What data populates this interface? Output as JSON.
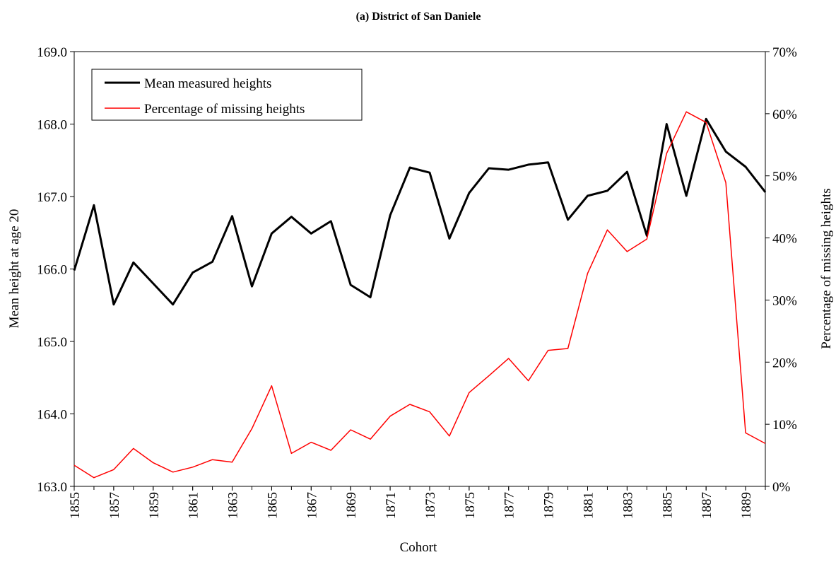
{
  "chart_data": {
    "type": "line",
    "title": "(a) District of San Daniele",
    "xlabel": "Cohort",
    "ylabel": "Mean height at age 20",
    "y2label": "Percentage of missing heights",
    "x": [
      1855,
      1856,
      1857,
      1858,
      1859,
      1860,
      1861,
      1862,
      1863,
      1864,
      1865,
      1866,
      1867,
      1868,
      1869,
      1870,
      1871,
      1872,
      1873,
      1874,
      1875,
      1876,
      1877,
      1878,
      1879,
      1880,
      1881,
      1882,
      1883,
      1884,
      1885,
      1886,
      1887,
      1888,
      1889,
      1890
    ],
    "xlim": [
      1855,
      1890
    ],
    "xticks": [
      1855,
      1857,
      1859,
      1861,
      1863,
      1865,
      1867,
      1869,
      1871,
      1873,
      1875,
      1877,
      1879,
      1881,
      1883,
      1885,
      1887,
      1889
    ],
    "ylim": [
      163,
      169
    ],
    "yticks": [
      {
        "value": 163,
        "label": "163.0"
      },
      {
        "value": 164,
        "label": "164.0"
      },
      {
        "value": 165,
        "label": "165.0"
      },
      {
        "value": 166,
        "label": "166.0"
      },
      {
        "value": 167,
        "label": "167.0"
      },
      {
        "value": 168,
        "label": "168.0"
      },
      {
        "value": 169,
        "label": "169.0"
      }
    ],
    "y2lim": [
      0,
      70
    ],
    "y2ticks": [
      {
        "value": 0,
        "label": "0%"
      },
      {
        "value": 10,
        "label": "10%"
      },
      {
        "value": 20,
        "label": "20%"
      },
      {
        "value": 30,
        "label": "30%"
      },
      {
        "value": 40,
        "label": "40%"
      },
      {
        "value": 50,
        "label": "50%"
      },
      {
        "value": 60,
        "label": "60%"
      },
      {
        "value": 70,
        "label": "70%"
      }
    ],
    "legend": "upper left",
    "series": [
      {
        "name": "Mean measured heights",
        "color": "#000000",
        "values": [
          165.98,
          166.88,
          165.51,
          166.09,
          165.8,
          165.51,
          165.95,
          166.1,
          166.73,
          165.76,
          166.49,
          166.72,
          166.49,
          166.66,
          165.78,
          165.61,
          166.74,
          167.4,
          167.33,
          166.42,
          167.05,
          167.39,
          167.37,
          167.44,
          167.47,
          166.68,
          167.01,
          167.08,
          167.34,
          166.46,
          168.0,
          167.01,
          168.07,
          167.62,
          167.41,
          167.06
        ]
      },
      {
        "name": "Percentage of missing heights",
        "color": "#ff0000",
        "axis": "y2",
        "values": [
          3.4,
          1.4,
          2.7,
          6.1,
          3.8,
          2.3,
          3.1,
          4.3,
          3.9,
          9.3,
          16.2,
          5.3,
          7.1,
          5.8,
          9.1,
          7.6,
          11.3,
          13.2,
          12.0,
          8.1,
          15.1,
          17.8,
          20.6,
          17.0,
          21.9,
          22.2,
          34.3,
          41.3,
          37.8,
          39.8,
          53.6,
          60.3,
          58.6,
          48.9,
          8.6,
          6.9
        ]
      }
    ]
  }
}
